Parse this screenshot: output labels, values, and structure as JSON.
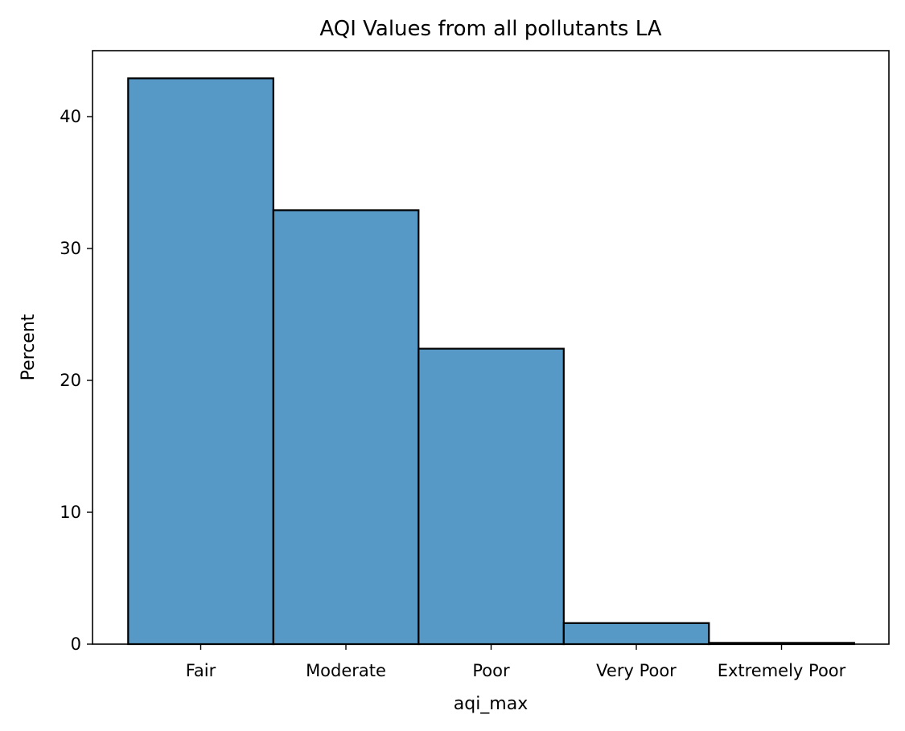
{
  "chart_data": {
    "type": "bar",
    "title": "AQI Values from all pollutants LA",
    "xlabel": "aqi_max",
    "ylabel": "Percent",
    "categories": [
      "Fair",
      "Moderate",
      "Poor",
      "Very Poor",
      "Extremely Poor"
    ],
    "values": [
      42.9,
      32.9,
      22.4,
      1.6,
      0.1
    ],
    "ylim": [
      0,
      45
    ],
    "yticks": [
      "0",
      "10",
      "20",
      "30",
      "40"
    ],
    "grid": false,
    "legend": "none",
    "bar_color": "#5699c6",
    "edge_color": "#000000"
  }
}
